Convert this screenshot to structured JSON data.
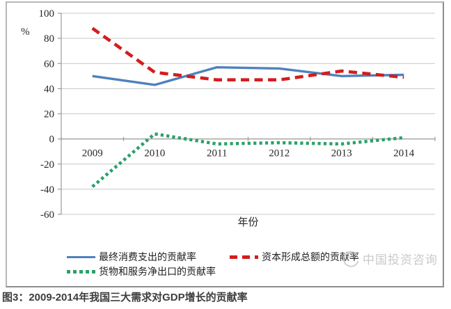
{
  "chart_data": {
    "type": "line",
    "title": "",
    "xlabel": "年份",
    "ylabel": "%",
    "ylim": [
      -60,
      100
    ],
    "ytick_step": 20,
    "yticks": [
      100,
      80,
      60,
      40,
      20,
      0,
      -20,
      -40,
      -60
    ],
    "categories": [
      "2009",
      "2010",
      "2011",
      "2012",
      "2013",
      "2014"
    ],
    "grid": true,
    "legend_position": "bottom",
    "series": [
      {
        "name": "最终消费支出的贡献率",
        "color": "#4F81BD",
        "line_style": "solid",
        "values": [
          50,
          43,
          57,
          56,
          50,
          51
        ]
      },
      {
        "name": "资本形成总额的贡献率",
        "color": "#D31D1D",
        "line_style": "dashed",
        "values": [
          88,
          53,
          47,
          47,
          54,
          49
        ]
      },
      {
        "name": "货物和服务净出口的贡献率",
        "color": "#2BA169",
        "line_style": "dotted",
        "values": [
          -38,
          4,
          -4,
          -3,
          -4,
          1
        ]
      }
    ]
  },
  "caption": "图3：2009-2014年我国三大需求对GDP增长的贡献率",
  "watermark": {
    "text": "中国投资咨询"
  },
  "colors": {
    "grid": "#c8c8c8",
    "axis": "#999999",
    "tick_text": "#262626",
    "watermark": "#c9c9c9"
  }
}
